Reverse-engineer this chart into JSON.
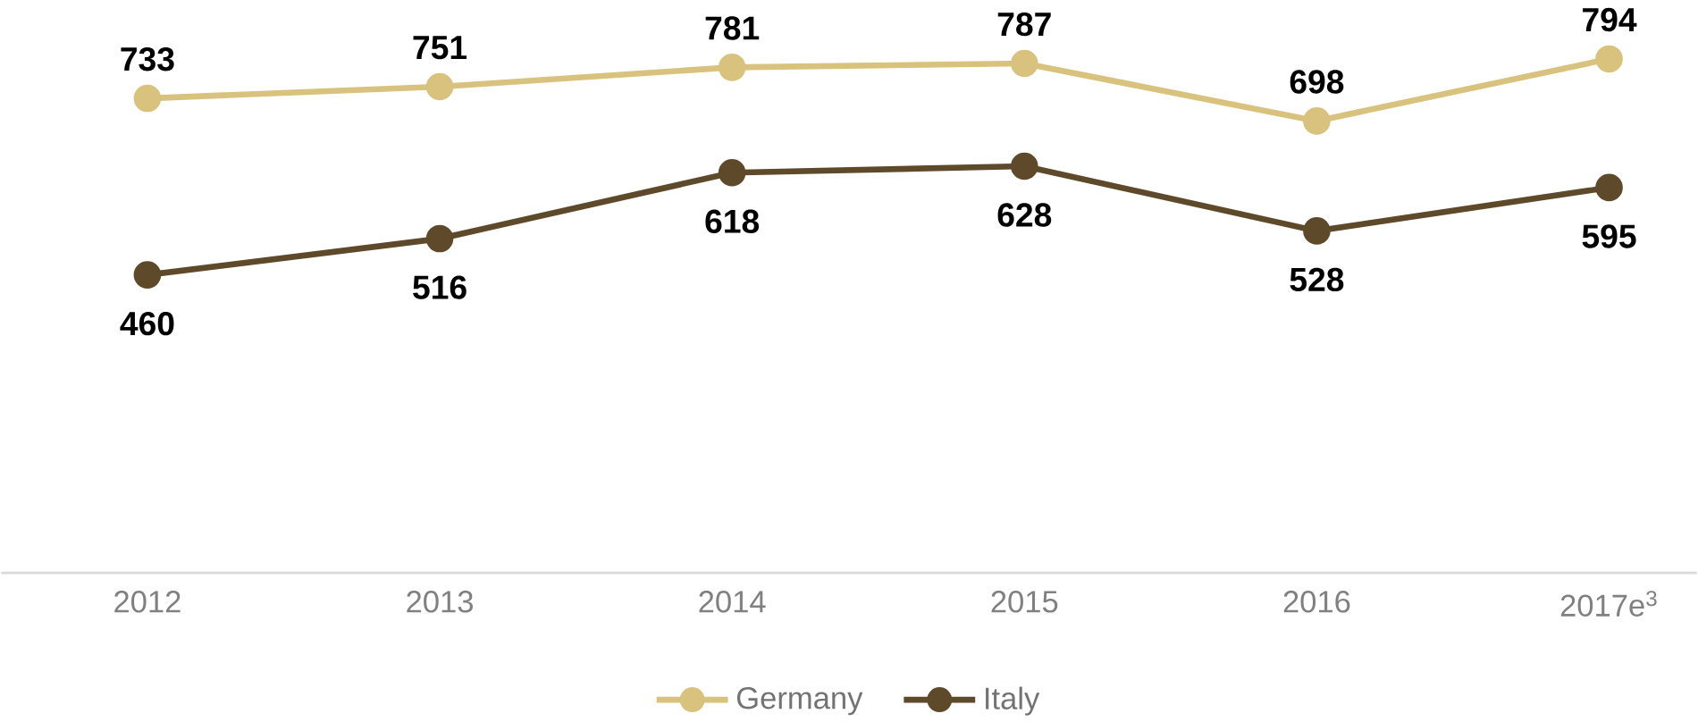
{
  "chart_data": {
    "type": "line",
    "categories": [
      "2012",
      "2013",
      "2014",
      "2015",
      "2016",
      "2017e$^{3}$"
    ],
    "series": [
      {
        "name": "Germany",
        "color": "#d8c27e",
        "values": [
          733,
          751,
          781,
          787,
          698,
          794
        ]
      },
      {
        "name": "Italy",
        "color": "#5e4a2a",
        "values": [
          460,
          516,
          618,
          628,
          528,
          595
        ]
      }
    ],
    "data_labels": true,
    "legend": "bottom",
    "marker": "circle"
  }
}
